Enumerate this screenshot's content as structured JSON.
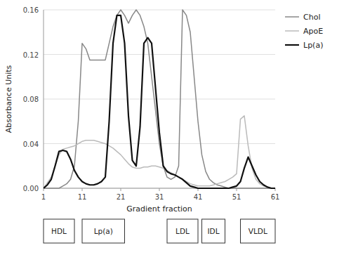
{
  "chart_data": {
    "type": "line",
    "x_label": "Gradient fraction",
    "y_label": "Absorbance Units",
    "xlim": [
      1,
      61
    ],
    "ylim": [
      0,
      0.16
    ],
    "xticks": [
      1,
      11,
      21,
      31,
      41,
      51,
      61
    ],
    "yticks": [
      {
        "value": 0,
        "label": "0.00"
      },
      0.04,
      0.08,
      0.12,
      0.16
    ],
    "grid": true,
    "legend": "right",
    "x": [
      1,
      2,
      3,
      4,
      5,
      6,
      7,
      8,
      9,
      10,
      11,
      12,
      13,
      14,
      15,
      16,
      17,
      18,
      19,
      20,
      21,
      22,
      23,
      24,
      25,
      26,
      27,
      28,
      29,
      30,
      31,
      32,
      33,
      34,
      35,
      36,
      37,
      38,
      39,
      40,
      41,
      42,
      43,
      44,
      45,
      46,
      47,
      48,
      49,
      50,
      51,
      52,
      53,
      54,
      55,
      56,
      57,
      58,
      59,
      60,
      61
    ],
    "series": [
      {
        "name": "Chol",
        "color": "#888888",
        "values": [
          0.0,
          0.0,
          0.0,
          0.0,
          0.0,
          0.002,
          0.004,
          0.008,
          0.02,
          0.06,
          0.13,
          0.125,
          0.115,
          0.115,
          0.115,
          0.115,
          0.115,
          0.13,
          0.145,
          0.155,
          0.16,
          0.155,
          0.148,
          0.155,
          0.16,
          0.155,
          0.145,
          0.13,
          0.1,
          0.07,
          0.04,
          0.02,
          0.01,
          0.008,
          0.01,
          0.02,
          0.16,
          0.155,
          0.14,
          0.1,
          0.06,
          0.03,
          0.015,
          0.008,
          0.005,
          0.003,
          0.002,
          0.001,
          0.0,
          0.0,
          0.0,
          0.0,
          0.0,
          0.0,
          0.0,
          0.0,
          0.0,
          0.0,
          0.0,
          0.0,
          0.0
        ]
      },
      {
        "name": "ApoE",
        "color": "#bbbbbb",
        "values": [
          0.0,
          0.005,
          0.01,
          0.02,
          0.03,
          0.035,
          0.036,
          0.037,
          0.038,
          0.04,
          0.042,
          0.043,
          0.043,
          0.043,
          0.042,
          0.041,
          0.04,
          0.038,
          0.036,
          0.033,
          0.03,
          0.026,
          0.022,
          0.019,
          0.018,
          0.018,
          0.019,
          0.019,
          0.02,
          0.02,
          0.019,
          0.018,
          0.016,
          0.014,
          0.012,
          0.01,
          0.008,
          0.006,
          0.004,
          0.003,
          0.002,
          0.002,
          0.002,
          0.002,
          0.003,
          0.004,
          0.005,
          0.006,
          0.008,
          0.01,
          0.013,
          0.062,
          0.065,
          0.038,
          0.018,
          0.008,
          0.004,
          0.002,
          0.001,
          0.0,
          0.0
        ]
      },
      {
        "name": "Lp(a)",
        "color": "#111111",
        "values": [
          0.0,
          0.003,
          0.008,
          0.02,
          0.033,
          0.034,
          0.033,
          0.026,
          0.016,
          0.01,
          0.006,
          0.004,
          0.003,
          0.003,
          0.004,
          0.006,
          0.01,
          0.06,
          0.13,
          0.155,
          0.155,
          0.13,
          0.065,
          0.025,
          0.02,
          0.055,
          0.13,
          0.135,
          0.13,
          0.09,
          0.05,
          0.02,
          0.015,
          0.013,
          0.012,
          0.01,
          0.008,
          0.005,
          0.002,
          0.001,
          0.0,
          0.0,
          0.0,
          0.0,
          0.0,
          0.0,
          0.0,
          0.0,
          0.0,
          0.001,
          0.002,
          0.006,
          0.018,
          0.028,
          0.02,
          0.012,
          0.006,
          0.003,
          0.001,
          0.0,
          0.0
        ]
      }
    ],
    "annotations": [
      {
        "text": "HDL",
        "x0": 1,
        "x1": 9
      },
      {
        "text": "Lp(a)",
        "x0": 11,
        "x1": 22
      },
      {
        "text": "LDL",
        "x0": 33,
        "x1": 41
      },
      {
        "text": "IDL",
        "x0": 42,
        "x1": 48
      },
      {
        "text": "VLDL",
        "x0": 52,
        "x1": 61
      }
    ]
  }
}
